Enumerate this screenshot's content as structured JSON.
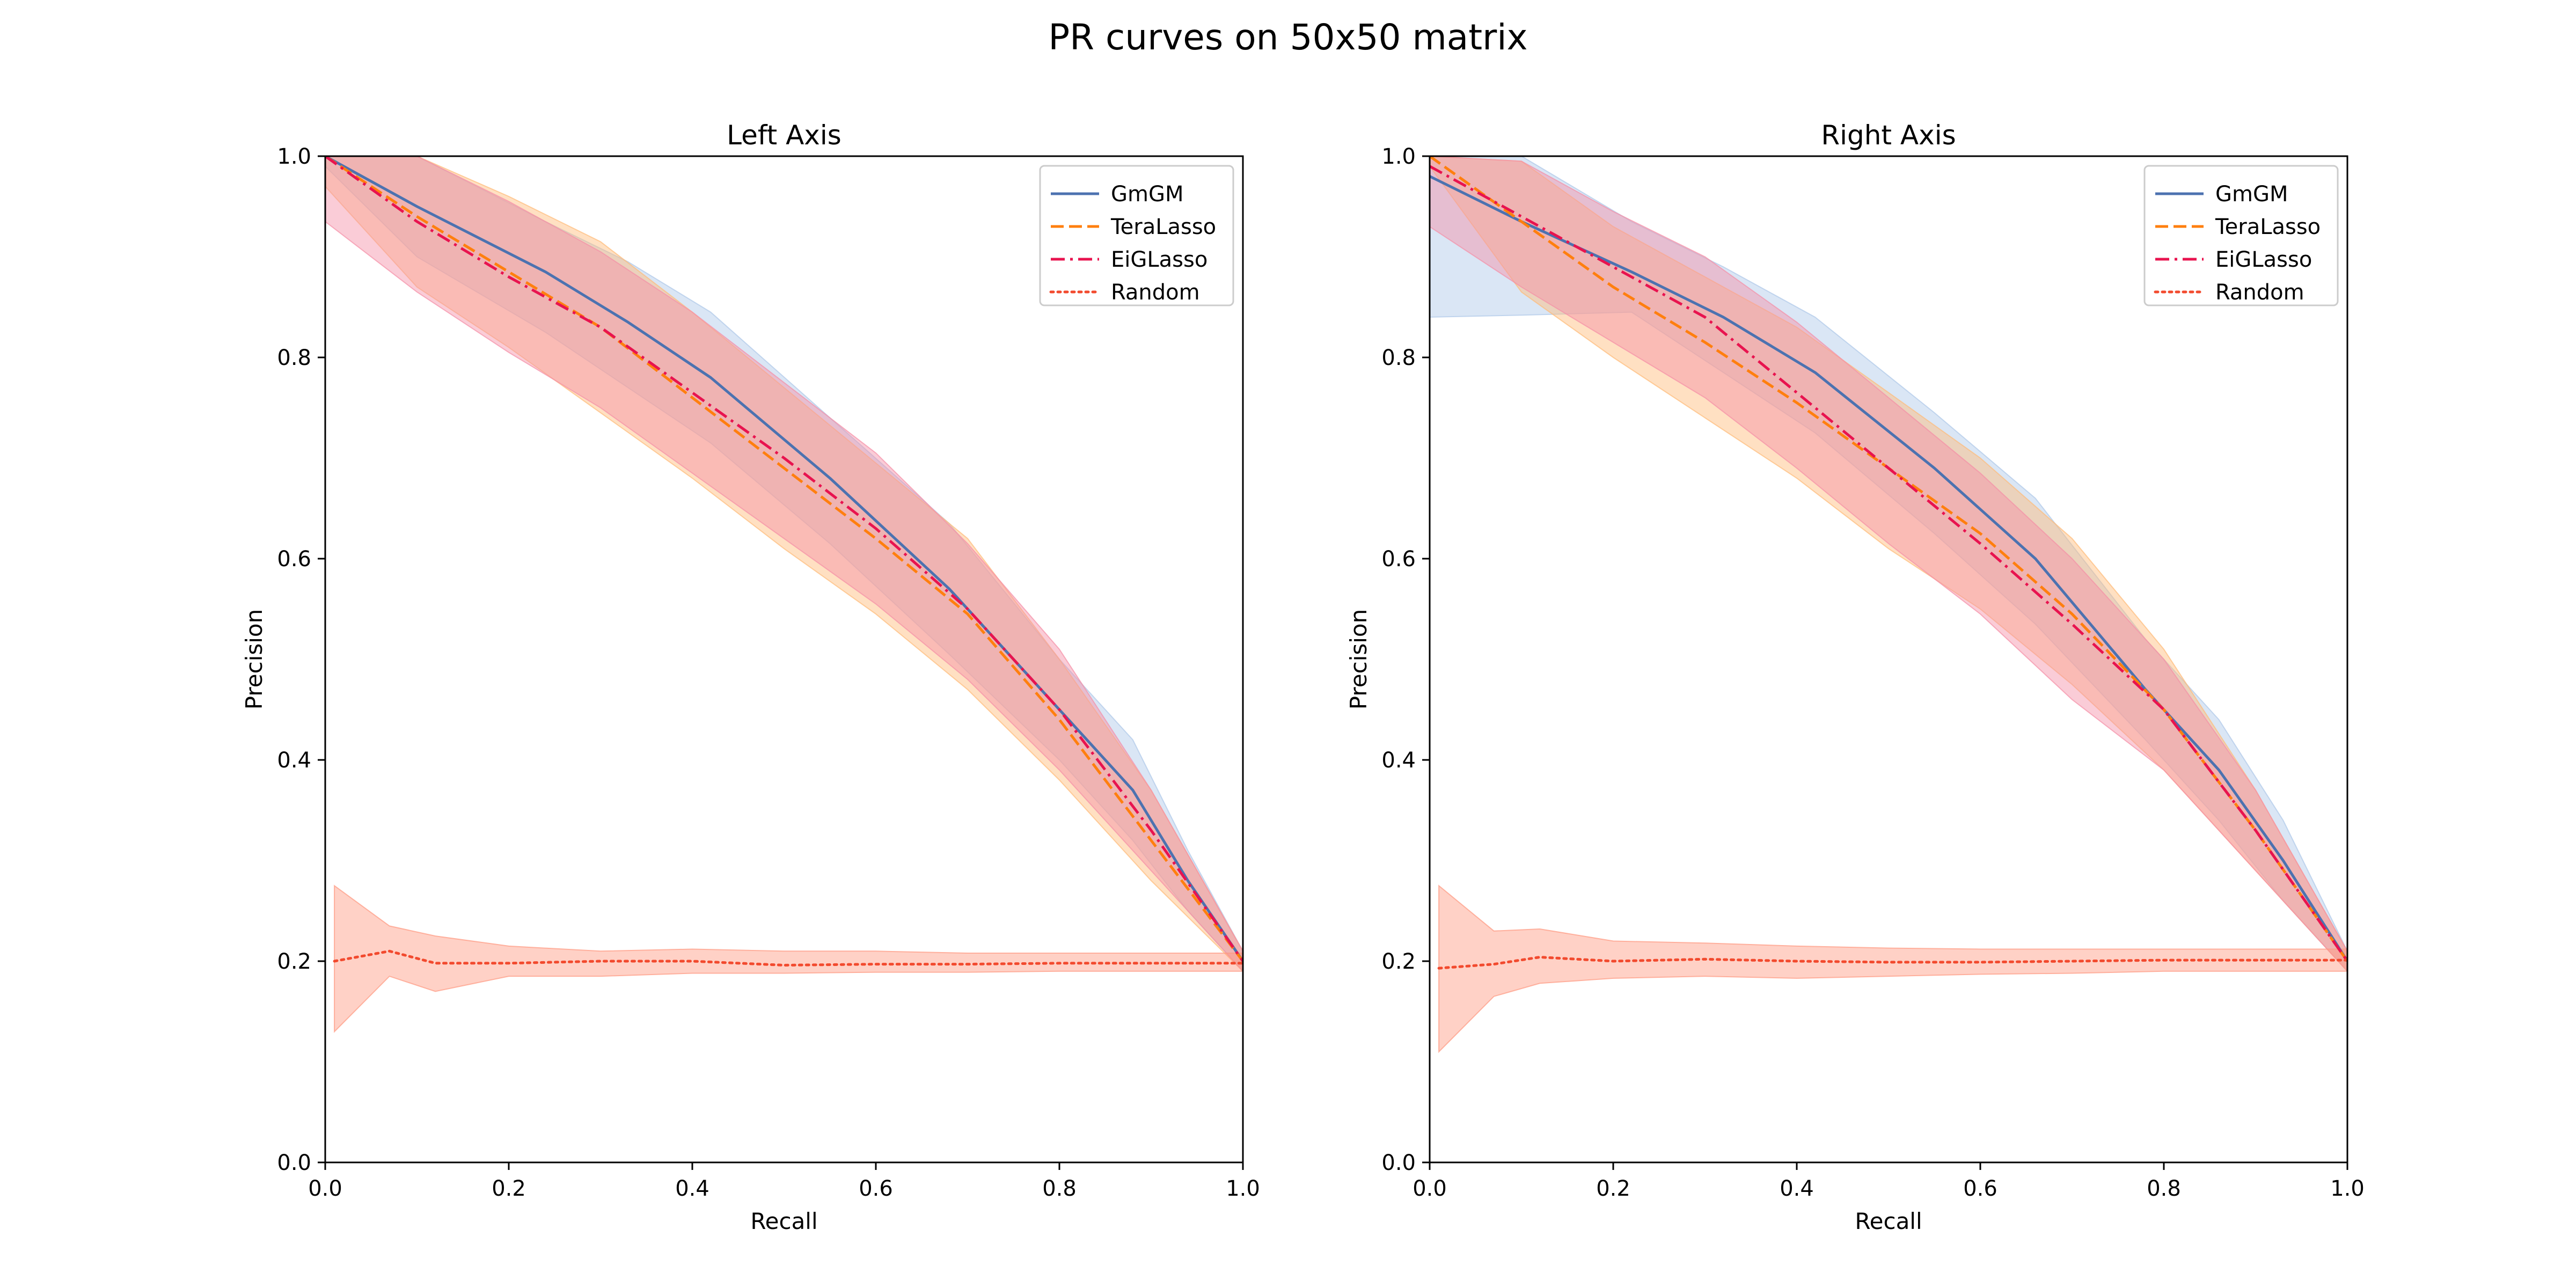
{
  "figure": {
    "title": "PR curves on 50x50 matrix"
  },
  "colors": {
    "GmGM": "#4c72b0",
    "TeraLasso": "#ff7f0e",
    "EiGLasso": "#e8134f",
    "Random": "#f24a2e",
    "GmGM_band": "#aec7e8",
    "TeraLasso_band": "#ffbb78",
    "EiGLasso_band": "#f58ea6",
    "Random_band": "#ff9980"
  },
  "chart_data": [
    {
      "type": "line",
      "title": "Left Axis",
      "xlabel": "Recall",
      "ylabel": "Precision",
      "xlim": [
        0,
        1
      ],
      "ylim": [
        0,
        1
      ],
      "xticks": [
        "0.0",
        "0.2",
        "0.4",
        "0.6",
        "0.8",
        "1.0"
      ],
      "yticks": [
        "0.0",
        "0.2",
        "0.4",
        "0.6",
        "0.8",
        "1.0"
      ],
      "legend_position": "top-right",
      "series": [
        {
          "name": "GmGM",
          "style": "solid",
          "x": [
            0,
            0.1,
            0.24,
            0.33,
            0.42,
            0.55,
            0.68,
            0.8,
            0.88,
            0.94,
            1.0
          ],
          "y": [
            1.0,
            0.95,
            0.885,
            0.835,
            0.78,
            0.68,
            0.57,
            0.45,
            0.37,
            0.28,
            0.2
          ],
          "lower": [
            0.99,
            0.9,
            0.825,
            0.77,
            0.715,
            0.615,
            0.505,
            0.4,
            0.32,
            0.25,
            0.19
          ],
          "upper": [
            1.0,
            1.0,
            0.935,
            0.895,
            0.845,
            0.74,
            0.635,
            0.5,
            0.42,
            0.31,
            0.21
          ]
        },
        {
          "name": "TeraLasso",
          "style": "dashed",
          "x": [
            0,
            0.1,
            0.2,
            0.3,
            0.4,
            0.5,
            0.6,
            0.7,
            0.8,
            0.9,
            1.0
          ],
          "y": [
            1.0,
            0.94,
            0.885,
            0.83,
            0.76,
            0.69,
            0.62,
            0.545,
            0.44,
            0.32,
            0.2
          ],
          "lower": [
            0.97,
            0.87,
            0.81,
            0.745,
            0.68,
            0.61,
            0.545,
            0.47,
            0.38,
            0.28,
            0.19
          ],
          "upper": [
            1.0,
            1.0,
            0.96,
            0.915,
            0.845,
            0.77,
            0.695,
            0.62,
            0.5,
            0.37,
            0.21
          ]
        },
        {
          "name": "EiGLasso",
          "style": "dashdot",
          "x": [
            0,
            0.1,
            0.2,
            0.3,
            0.4,
            0.5,
            0.6,
            0.7,
            0.8,
            0.9,
            1.0
          ],
          "y": [
            1.0,
            0.935,
            0.88,
            0.83,
            0.765,
            0.7,
            0.63,
            0.55,
            0.45,
            0.33,
            0.2
          ],
          "lower": [
            0.935,
            0.865,
            0.805,
            0.75,
            0.685,
            0.62,
            0.555,
            0.48,
            0.39,
            0.29,
            0.19
          ],
          "upper": [
            1.0,
            1.0,
            0.955,
            0.905,
            0.845,
            0.775,
            0.705,
            0.615,
            0.51,
            0.37,
            0.21
          ]
        },
        {
          "name": "Random",
          "style": "dotted",
          "x": [
            0.01,
            0.07,
            0.12,
            0.2,
            0.3,
            0.4,
            0.5,
            0.6,
            0.7,
            0.8,
            0.9,
            1.0
          ],
          "y": [
            0.2,
            0.21,
            0.198,
            0.198,
            0.2,
            0.2,
            0.196,
            0.197,
            0.197,
            0.198,
            0.198,
            0.198
          ],
          "lower": [
            0.13,
            0.185,
            0.17,
            0.185,
            0.185,
            0.188,
            0.188,
            0.189,
            0.189,
            0.19,
            0.19,
            0.19
          ],
          "upper": [
            0.275,
            0.235,
            0.225,
            0.215,
            0.21,
            0.212,
            0.21,
            0.21,
            0.208,
            0.208,
            0.208,
            0.208
          ]
        }
      ]
    },
    {
      "type": "line",
      "title": "Right Axis",
      "xlabel": "Recall",
      "ylabel": "Precision",
      "xlim": [
        0,
        1
      ],
      "ylim": [
        0,
        1
      ],
      "xticks": [
        "0.0",
        "0.2",
        "0.4",
        "0.6",
        "0.8",
        "1.0"
      ],
      "yticks": [
        "0.0",
        "0.2",
        "0.4",
        "0.6",
        "0.8",
        "1.0"
      ],
      "legend_position": "top-right",
      "series": [
        {
          "name": "GmGM",
          "style": "solid",
          "x": [
            0,
            0.1,
            0.22,
            0.32,
            0.42,
            0.55,
            0.66,
            0.78,
            0.86,
            0.93,
            1.0
          ],
          "y": [
            0.98,
            0.935,
            0.885,
            0.84,
            0.785,
            0.69,
            0.6,
            0.47,
            0.39,
            0.3,
            0.2
          ],
          "lower": [
            0.84,
            0.842,
            0.845,
            0.785,
            0.725,
            0.625,
            0.535,
            0.42,
            0.34,
            0.26,
            0.19
          ],
          "upper": [
            1.0,
            1.0,
            0.935,
            0.89,
            0.84,
            0.745,
            0.66,
            0.52,
            0.44,
            0.34,
            0.21
          ]
        },
        {
          "name": "TeraLasso",
          "style": "dashed",
          "x": [
            0,
            0.1,
            0.2,
            0.3,
            0.4,
            0.5,
            0.6,
            0.7,
            0.8,
            0.9,
            1.0
          ],
          "y": [
            1.0,
            0.935,
            0.87,
            0.815,
            0.755,
            0.69,
            0.625,
            0.545,
            0.45,
            0.33,
            0.2
          ],
          "lower": [
            0.99,
            0.865,
            0.8,
            0.74,
            0.68,
            0.61,
            0.55,
            0.475,
            0.39,
            0.29,
            0.19
          ],
          "upper": [
            1.0,
            0.995,
            0.93,
            0.88,
            0.83,
            0.765,
            0.7,
            0.62,
            0.51,
            0.37,
            0.21
          ]
        },
        {
          "name": "EiGLasso",
          "style": "dashdot",
          "x": [
            0,
            0.1,
            0.2,
            0.3,
            0.4,
            0.5,
            0.6,
            0.7,
            0.8,
            0.9,
            1.0
          ],
          "y": [
            0.99,
            0.94,
            0.89,
            0.84,
            0.765,
            0.69,
            0.615,
            0.535,
            0.45,
            0.33,
            0.2
          ],
          "lower": [
            0.93,
            0.87,
            0.815,
            0.76,
            0.69,
            0.615,
            0.545,
            0.46,
            0.39,
            0.29,
            0.19
          ],
          "upper": [
            1.0,
            0.995,
            0.945,
            0.9,
            0.835,
            0.76,
            0.685,
            0.6,
            0.5,
            0.37,
            0.21
          ]
        },
        {
          "name": "Random",
          "style": "dotted",
          "x": [
            0.01,
            0.07,
            0.12,
            0.2,
            0.3,
            0.4,
            0.5,
            0.6,
            0.7,
            0.8,
            0.9,
            1.0
          ],
          "y": [
            0.193,
            0.197,
            0.204,
            0.2,
            0.202,
            0.2,
            0.199,
            0.199,
            0.2,
            0.201,
            0.201,
            0.201
          ],
          "lower": [
            0.11,
            0.165,
            0.178,
            0.183,
            0.185,
            0.183,
            0.185,
            0.187,
            0.188,
            0.19,
            0.19,
            0.19
          ],
          "upper": [
            0.275,
            0.23,
            0.232,
            0.22,
            0.218,
            0.215,
            0.213,
            0.212,
            0.212,
            0.212,
            0.212,
            0.212
          ]
        }
      ]
    }
  ]
}
